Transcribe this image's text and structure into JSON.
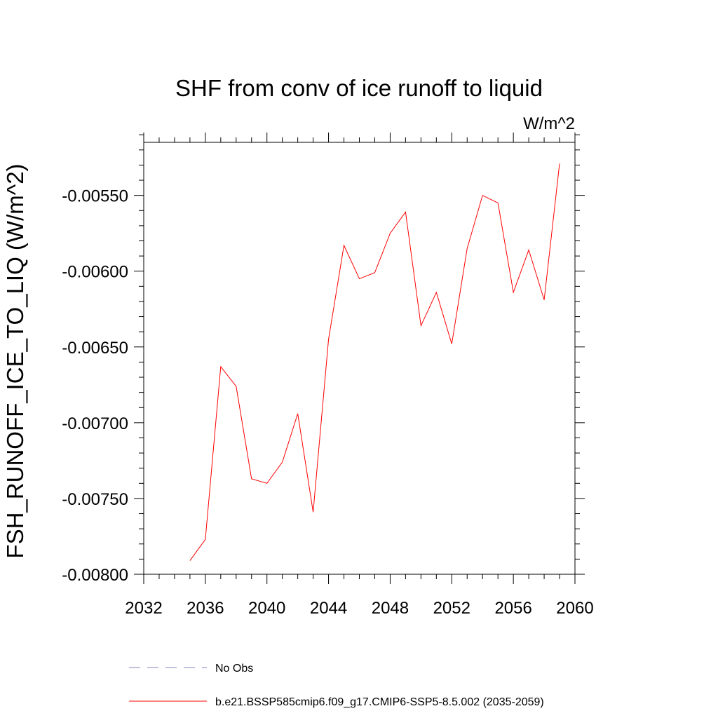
{
  "chart_data": {
    "type": "line",
    "title": "SHF from conv of ice runoff to liquid",
    "units_label": "W/m^2",
    "ylabel": "FSH_RUNOFF_ICE_TO_LIQ  (W/m^2)",
    "xlabel": "",
    "xlim": [
      2032,
      2060
    ],
    "ylim": [
      -0.008,
      -0.00515
    ],
    "x_ticks": [
      2032,
      2036,
      2040,
      2044,
      2048,
      2052,
      2056,
      2060
    ],
    "x_tick_labels": [
      "2032",
      "2036",
      "2040",
      "2044",
      "2048",
      "2052",
      "2056",
      "2060"
    ],
    "y_ticks": [
      -0.008,
      -0.0075,
      -0.007,
      -0.0065,
      -0.006,
      -0.0055
    ],
    "y_tick_labels": [
      "-0.00800",
      "-0.00750",
      "-0.00700",
      "-0.00650",
      "-0.00600",
      "-0.00550"
    ],
    "grid": false,
    "legend_position": "bottom",
    "series": [
      {
        "name": "b.e21.BSSP585cmip6.f09_g17.CMIP6-SSP5-8.5.002 (2035-2059)",
        "color": "#ff0000",
        "style": "solid",
        "x": [
          2035,
          2036,
          2037,
          2038,
          2039,
          2040,
          2041,
          2042,
          2043,
          2044,
          2045,
          2046,
          2047,
          2048,
          2049,
          2050,
          2051,
          2052,
          2053,
          2054,
          2055,
          2056,
          2057,
          2058,
          2059
        ],
        "y": [
          -0.00791,
          -0.00777,
          -0.00663,
          -0.00676,
          -0.00737,
          -0.0074,
          -0.00726,
          -0.00694,
          -0.00759,
          -0.00645,
          -0.00583,
          -0.00605,
          -0.00601,
          -0.00575,
          -0.00561,
          -0.00636,
          -0.00614,
          -0.00648,
          -0.00585,
          -0.0055,
          -0.00555,
          -0.00614,
          -0.00586,
          -0.00619,
          -0.00529
        ]
      }
    ],
    "legend": [
      {
        "label": "No Obs",
        "color": "#8080c0",
        "style": "dashed"
      },
      {
        "label": "b.e21.BSSP585cmip6.f09_g17.CMIP6-SSP5-8.5.002 (2035-2059)",
        "color": "#ff0000",
        "style": "solid"
      }
    ]
  }
}
